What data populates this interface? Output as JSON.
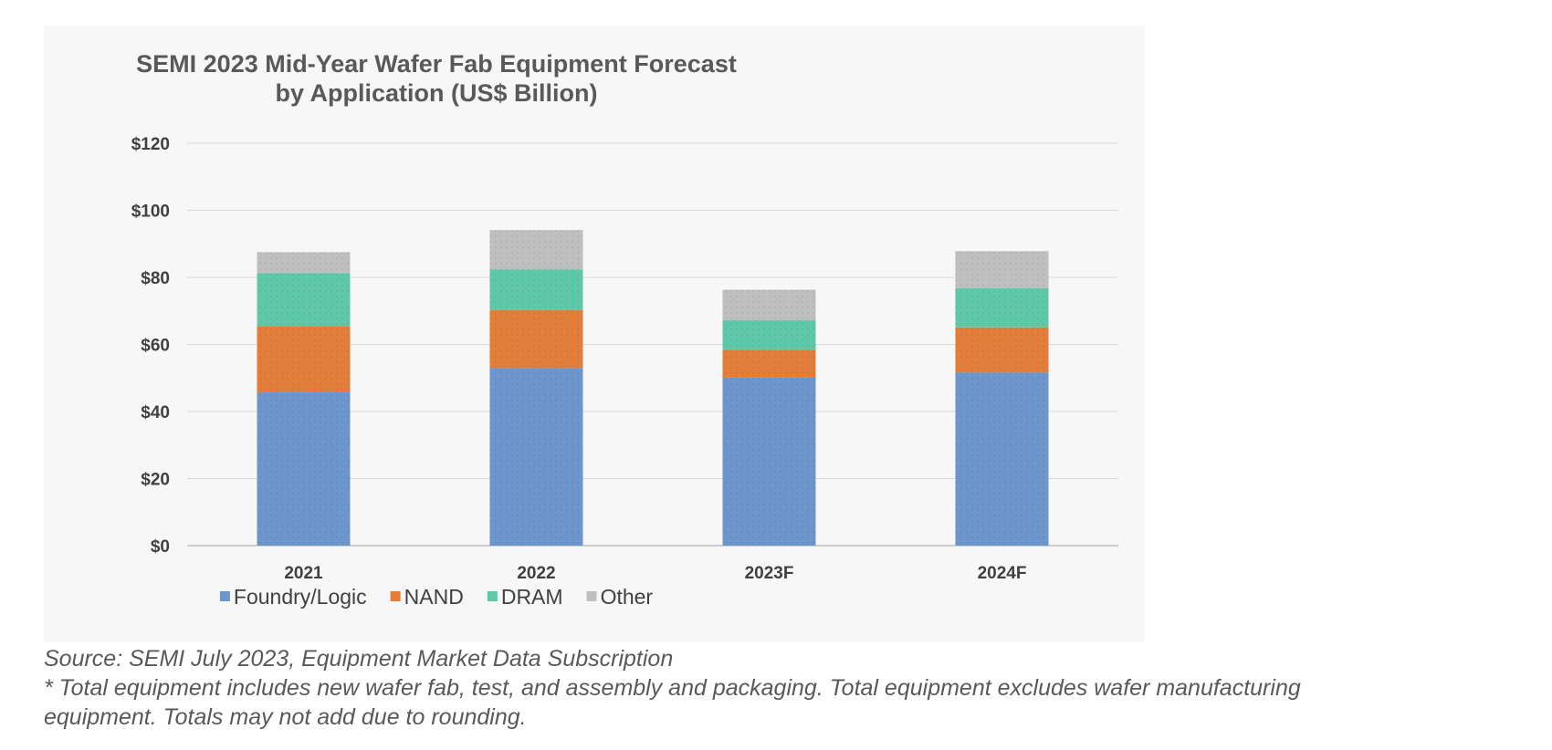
{
  "chart_data": {
    "type": "bar",
    "stacked": true,
    "title": "SEMI 2023 Mid-Year Wafer Fab Equipment Forecast",
    "subtitle": "by Application (US$ Billion)",
    "categories": [
      "2021",
      "2022",
      "2023F",
      "2024F"
    ],
    "series": [
      {
        "name": "Foundry/Logic",
        "color": "#6c96cc",
        "values": [
          45.7,
          53.0,
          50.1,
          51.6
        ]
      },
      {
        "name": "NAND",
        "color": "#e37d3a",
        "values": [
          19.8,
          17.3,
          8.3,
          13.5
        ]
      },
      {
        "name": "DRAM",
        "color": "#5fc8a8",
        "values": [
          15.8,
          12.1,
          8.8,
          11.7
        ]
      },
      {
        "name": "Other",
        "color": "#bfbfbf",
        "values": [
          6.2,
          11.7,
          9.1,
          11.0
        ]
      }
    ],
    "yticks": [
      "$0",
      "$20",
      "$40",
      "$60",
      "$80",
      "$100",
      "$120"
    ],
    "ytick_values": [
      0,
      20,
      40,
      60,
      80,
      100,
      120
    ],
    "ylim": [
      0,
      120
    ],
    "grid": true,
    "legend_position": "bottom"
  },
  "notes": {
    "source": "Source: SEMI July 2023, Equipment Market Data Subscription",
    "footnote_line1": "* Total equipment includes new wafer fab, test, and assembly and packaging. Total equipment excludes wafer manufacturing",
    "footnote_line2": "equipment. Totals may not add due to rounding."
  }
}
